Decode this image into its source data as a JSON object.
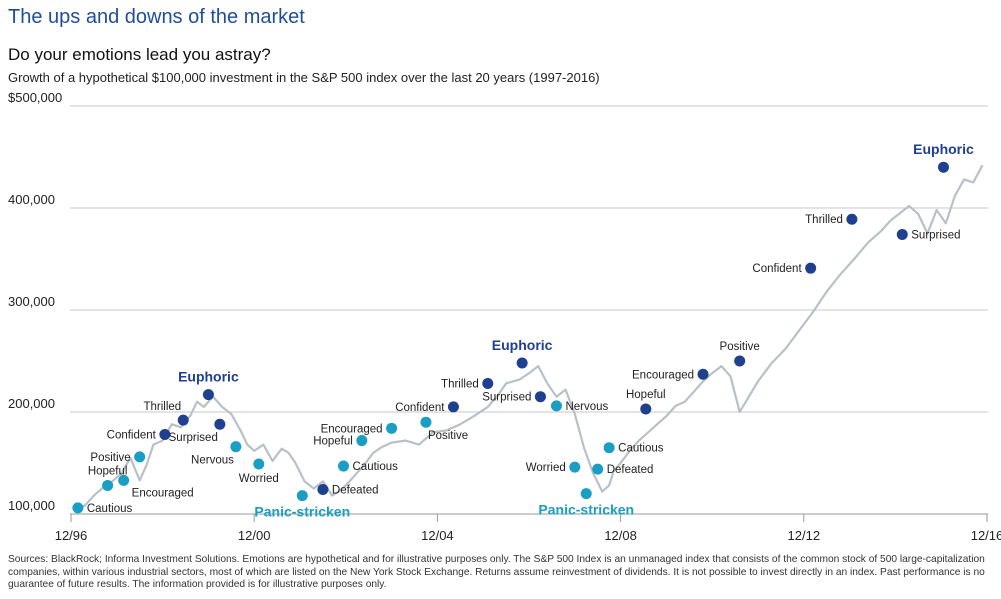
{
  "title": "The ups and downs of the market",
  "subtitle": "Do your emotions lead you astray?",
  "description": "Growth of a hypothetical $100,000 investment in the S&P 500 index over the last 20 years (1997-2016)",
  "footnote": "Sources: BlackRock; Informa Investment Solutions. Emotions are hypothetical and for illustrative purposes only. The S&P 500 Index is an unmanaged index that consists of the common stock of 500 large-capitalization companies, within various industrial sectors, most of which are listed on the New York Stock Exchange. Returns assume reinvestment of dividends. It is not possible to invest directly in an index. Past performance is no guarantee of future results. The information provided is for illustrative purposes only.",
  "colors": {
    "line": "#b8c0c8",
    "grid": "#c8c8c8",
    "dark_marker": "#1f3f8f",
    "light_marker": "#1a9ec4",
    "title": "#1f4e99"
  },
  "chart_data": {
    "type": "line",
    "xlabel": "",
    "ylabel": "",
    "x_ticks": [
      "12/96",
      "12/00",
      "12/04",
      "12/08",
      "12/12",
      "12/16"
    ],
    "y_ticks": [
      "$500,000",
      "400,000",
      "300,000",
      "200,000",
      "100,000"
    ],
    "y_tick_values": [
      500000,
      400000,
      300000,
      200000,
      100000
    ],
    "xlim": [
      1997.0,
      2017.0
    ],
    "ylim": [
      100000,
      500000
    ],
    "grid": true,
    "series": [
      {
        "x": [
          1997.1,
          1997.3,
          1997.5,
          1997.7,
          1997.9,
          1998.1,
          1998.3,
          1998.5,
          1998.65,
          1998.8,
          1999.0,
          1999.2,
          1999.4,
          1999.6,
          1999.75,
          1999.9,
          2000.1,
          2000.3,
          2000.5,
          2000.7,
          2000.85,
          2001.0,
          2001.2,
          2001.4,
          2001.6,
          2001.75,
          2001.9,
          2002.1,
          2002.3,
          2002.5,
          2002.7,
          2002.85,
          2003.0,
          2003.2,
          2003.4,
          2003.6,
          2003.8,
          2004.0,
          2004.3,
          2004.6,
          2004.9,
          2005.2,
          2005.5,
          2005.8,
          2006.1,
          2006.3,
          2006.5,
          2006.8,
          2007.0,
          2007.2,
          2007.4,
          2007.6,
          2007.8,
          2008.0,
          2008.2,
          2008.4,
          2008.6,
          2008.75,
          2008.85,
          2009.0,
          2009.2,
          2009.4,
          2009.6,
          2009.8,
          2010.0,
          2010.2,
          2010.4,
          2010.6,
          2010.8,
          2011.0,
          2011.2,
          2011.4,
          2011.6,
          2011.8,
          2012.0,
          2012.3,
          2012.6,
          2012.9,
          2013.2,
          2013.5,
          2013.8,
          2014.1,
          2014.4,
          2014.7,
          2014.9,
          2015.1,
          2015.3,
          2015.5,
          2015.7,
          2015.9,
          2016.1,
          2016.3,
          2016.5,
          2016.7,
          2016.9
        ],
        "values": [
          105000,
          108000,
          118000,
          126000,
          132000,
          140000,
          155000,
          133000,
          148000,
          168000,
          172000,
          188000,
          185000,
          196000,
          210000,
          205000,
          215000,
          205000,
          198000,
          182000,
          168000,
          162000,
          168000,
          152000,
          164000,
          160000,
          150000,
          132000,
          125000,
          132000,
          118000,
          122000,
          128000,
          138000,
          148000,
          160000,
          166000,
          170000,
          172000,
          168000,
          180000,
          182000,
          188000,
          196000,
          205000,
          215000,
          228000,
          232000,
          238000,
          245000,
          228000,
          215000,
          222000,
          198000,
          165000,
          140000,
          122000,
          128000,
          142000,
          150000,
          162000,
          172000,
          180000,
          188000,
          196000,
          206000,
          210000,
          220000,
          230000,
          238000,
          245000,
          235000,
          200000,
          215000,
          230000,
          248000,
          262000,
          280000,
          298000,
          318000,
          335000,
          350000,
          366000,
          378000,
          388000,
          395000,
          402000,
          394000,
          375000,
          398000,
          385000,
          412000,
          428000,
          425000,
          442000
        ]
      }
    ],
    "annotations": [
      {
        "label": "Cautious",
        "x": 1997.15,
        "y": 106000,
        "style": "light",
        "label_pos": "right"
      },
      {
        "label": "Hopeful",
        "x": 1997.8,
        "y": 128000,
        "style": "light",
        "label_pos": "above"
      },
      {
        "label": "Positive",
        "x": 1998.5,
        "y": 156000,
        "style": "light",
        "label_pos": "left"
      },
      {
        "label": "Encouraged",
        "x": 1998.15,
        "y": 133000,
        "style": "light",
        "label_pos": "right-below"
      },
      {
        "label": "Confident",
        "x": 1999.05,
        "y": 178000,
        "style": "dark",
        "label_pos": "left"
      },
      {
        "label": "Thrilled",
        "x": 1999.45,
        "y": 192000,
        "style": "dark",
        "label_pos": "above-left"
      },
      {
        "label": "Euphoric",
        "x": 2000.0,
        "y": 217000,
        "style": "dark",
        "label_pos": "above-big"
      },
      {
        "label": "Surprised",
        "x": 2000.25,
        "y": 188000,
        "style": "dark",
        "label_pos": "below-left"
      },
      {
        "label": "Nervous",
        "x": 2000.6,
        "y": 166000,
        "style": "light",
        "label_pos": "below-left"
      },
      {
        "label": "Worried",
        "x": 2001.1,
        "y": 149000,
        "style": "light",
        "label_pos": "below"
      },
      {
        "label": "Panic-stricken",
        "x": 2002.05,
        "y": 118000,
        "style": "light",
        "label_pos": "below-big"
      },
      {
        "label": "Defeated",
        "x": 2002.5,
        "y": 124000,
        "style": "dark",
        "label_pos": "right"
      },
      {
        "label": "Cautious",
        "x": 2002.95,
        "y": 147000,
        "style": "light",
        "label_pos": "right"
      },
      {
        "label": "Hopeful",
        "x": 2003.35,
        "y": 172000,
        "style": "light",
        "label_pos": "left"
      },
      {
        "label": "Encouraged",
        "x": 2004.0,
        "y": 184000,
        "style": "light",
        "label_pos": "left"
      },
      {
        "label": "Positive",
        "x": 2004.75,
        "y": 190000,
        "style": "light",
        "label_pos": "below-right"
      },
      {
        "label": "Confident",
        "x": 2005.35,
        "y": 205000,
        "style": "dark",
        "label_pos": "left"
      },
      {
        "label": "Thrilled",
        "x": 2006.1,
        "y": 228000,
        "style": "dark",
        "label_pos": "left"
      },
      {
        "label": "Euphoric",
        "x": 2006.85,
        "y": 248000,
        "style": "dark",
        "label_pos": "above-big"
      },
      {
        "label": "Surprised",
        "x": 2007.25,
        "y": 215000,
        "style": "dark",
        "label_pos": "left"
      },
      {
        "label": "Nervous",
        "x": 2007.6,
        "y": 206000,
        "style": "light",
        "label_pos": "right"
      },
      {
        "label": "Worried",
        "x": 2008.0,
        "y": 146000,
        "style": "light",
        "label_pos": "left"
      },
      {
        "label": "Panic-stricken",
        "x": 2008.25,
        "y": 120000,
        "style": "light",
        "label_pos": "below-big"
      },
      {
        "label": "Defeated",
        "x": 2008.5,
        "y": 144000,
        "style": "light",
        "label_pos": "right"
      },
      {
        "label": "Cautious",
        "x": 2008.75,
        "y": 165000,
        "style": "light",
        "label_pos": "right"
      },
      {
        "label": "Hopeful",
        "x": 2009.55,
        "y": 203000,
        "style": "dark",
        "label_pos": "above"
      },
      {
        "label": "Encouraged",
        "x": 2010.8,
        "y": 237000,
        "style": "dark",
        "label_pos": "left"
      },
      {
        "label": "Positive",
        "x": 2011.6,
        "y": 250000,
        "style": "dark",
        "label_pos": "above"
      },
      {
        "label": "Confident",
        "x": 2013.15,
        "y": 341000,
        "style": "dark",
        "label_pos": "left"
      },
      {
        "label": "Thrilled",
        "x": 2014.05,
        "y": 389000,
        "style": "dark",
        "label_pos": "left"
      },
      {
        "label": "Surprised",
        "x": 2015.15,
        "y": 374000,
        "style": "dark",
        "label_pos": "right"
      },
      {
        "label": "Euphoric",
        "x": 2016.05,
        "y": 440000,
        "style": "dark",
        "label_pos": "above-big"
      }
    ]
  }
}
